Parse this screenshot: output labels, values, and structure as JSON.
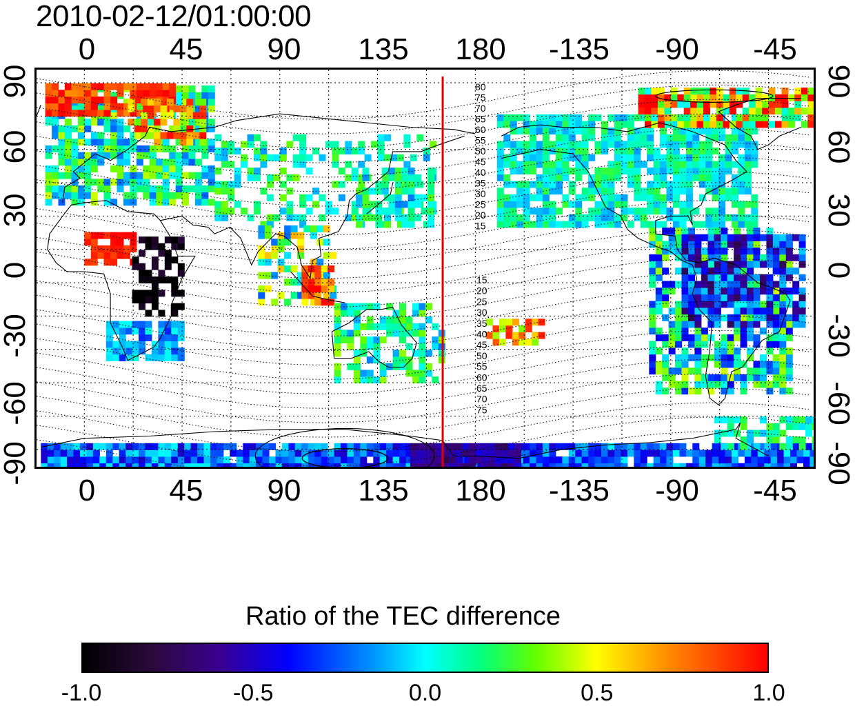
{
  "timestamp": "2010-02-12/01:00:00",
  "x_ticks": [
    "0",
    "45",
    "90",
    "135",
    "180",
    "-135",
    "-90",
    "-45"
  ],
  "y_ticks": [
    "90",
    "60",
    "30",
    "0",
    "-30",
    "-60",
    "-90"
  ],
  "contour_labels_north": [
    "80",
    "75",
    "70",
    "65",
    "60",
    "55",
    "50",
    "45",
    "40",
    "35",
    "30",
    "25",
    "20",
    "15"
  ],
  "contour_labels_south": [
    "15",
    "20",
    "25",
    "30",
    "35",
    "40",
    "45",
    "50",
    "55",
    "60",
    "65",
    "70",
    "75"
  ],
  "colorbar": {
    "title": "Ratio of the TEC difference",
    "ticks": [
      "-1.0",
      "-0.5",
      "0.0",
      "0.5",
      "1.0"
    ],
    "range": [
      -1.0,
      1.0
    ]
  },
  "meridian_line_color": "#e00000",
  "meridian_line_longitude": 165
}
